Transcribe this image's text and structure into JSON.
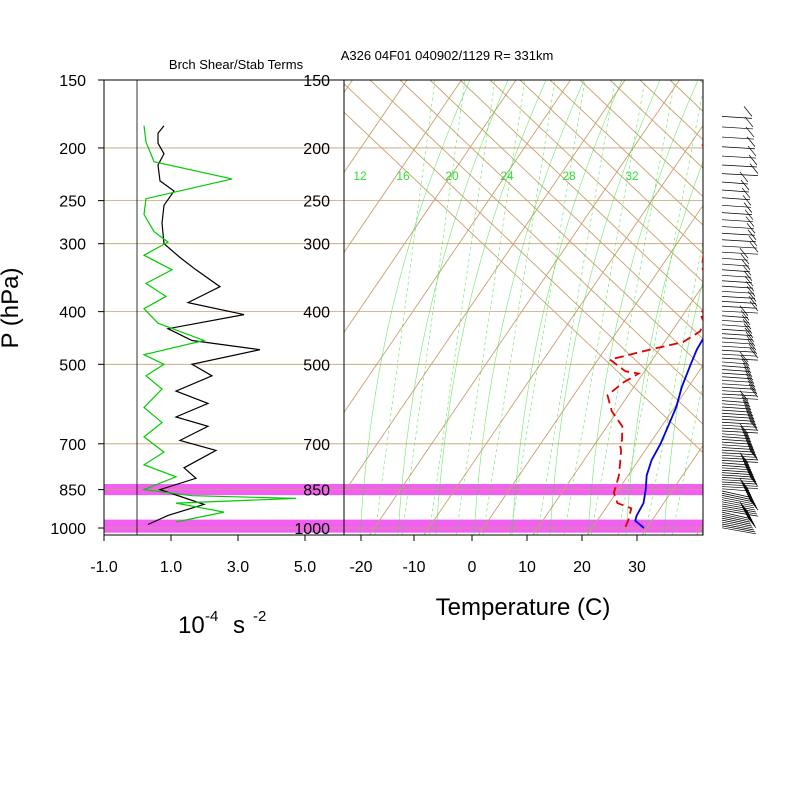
{
  "header": {
    "left_title": "Brch Shear/Stab Terms",
    "right_title": "A326 04F01 040902/1129 R= 331km"
  },
  "left_panel": {
    "ylabel": "P (hPa)",
    "xlabel_base": "10",
    "xlabel_exp": "-4",
    "xlabel_unit": "s",
    "xlabel_unit_exp": "-2"
  },
  "right_panel": {
    "xlabel": "Temperature (C)"
  },
  "colors": {
    "black_series": "#000000",
    "green_series": "#00cc00",
    "temperature": "#0000e0",
    "dewpoint": "#e00000",
    "skewt_lines": "#c8a070",
    "mixing_ratio": "#33dd33",
    "highlight": "#ee44ee"
  },
  "chart_data": [
    {
      "type": "line",
      "panel": "left",
      "title": "Brch Shear/Stab Terms",
      "ylabel": "P (hPa)",
      "xlabel": "10-4 s -2",
      "y_scale": "log",
      "ylim": [
        1030,
        150
      ],
      "xlim": [
        -1.0,
        5.0
      ],
      "x_ticks": [
        "-1.0",
        "1.0",
        "3.0",
        "5.0"
      ],
      "y_ticks": [
        "150",
        "200",
        "250",
        "300",
        "400",
        "500",
        "700",
        "850",
        "1000"
      ],
      "zero_line": 0.0,
      "highlight_bands_hpa": [
        [
          830,
          870
        ],
        [
          965,
          1020
        ]
      ],
      "series": [
        {
          "color": "black",
          "points": [
            [
              0.5,
              182
            ],
            [
              0.35,
              188
            ],
            [
              0.35,
              196
            ],
            [
              0.5,
              205
            ],
            [
              0.35,
              215
            ],
            [
              0.4,
              230
            ],
            [
              0.75,
              240
            ],
            [
              0.5,
              255
            ],
            [
              0.45,
              275
            ],
            [
              0.5,
              300
            ],
            [
              0.9,
              318
            ],
            [
              1.3,
              335
            ],
            [
              1.9,
              360
            ],
            [
              1.1,
              385
            ],
            [
              2.5,
              405
            ],
            [
              0.6,
              430
            ],
            [
              1.2,
              452
            ],
            [
              2.9,
              470
            ],
            [
              1.2,
              500
            ],
            [
              1.7,
              525
            ],
            [
              0.8,
              560
            ],
            [
              1.6,
              590
            ],
            [
              0.8,
              625
            ],
            [
              1.6,
              650
            ],
            [
              0.9,
              690
            ],
            [
              1.8,
              720
            ],
            [
              1.0,
              775
            ],
            [
              1.3,
              810
            ],
            [
              0.4,
              850
            ],
            [
              1.5,
              905
            ],
            [
              0.6,
              948
            ],
            [
              0.1,
              985
            ]
          ]
        },
        {
          "color": "green",
          "points": [
            [
              0.0,
              182
            ],
            [
              0.05,
              195
            ],
            [
              0.25,
              212
            ],
            [
              2.2,
              228
            ],
            [
              0.05,
              248
            ],
            [
              0.0,
              265
            ],
            [
              0.25,
              285
            ],
            [
              0.6,
              298
            ],
            [
              0.0,
              315
            ],
            [
              0.7,
              335
            ],
            [
              0.05,
              355
            ],
            [
              0.55,
              375
            ],
            [
              0.0,
              395
            ],
            [
              0.35,
              420
            ],
            [
              1.5,
              452
            ],
            [
              0.0,
              480
            ],
            [
              0.5,
              500
            ],
            [
              0.05,
              525
            ],
            [
              0.45,
              555
            ],
            [
              0.0,
              600
            ],
            [
              0.45,
              640
            ],
            [
              0.0,
              680
            ],
            [
              0.5,
              725
            ],
            [
              0.0,
              765
            ],
            [
              0.8,
              805
            ],
            [
              0.0,
              850
            ],
            [
              1.2,
              872
            ],
            [
              3.8,
              882
            ],
            [
              0.8,
              900
            ],
            [
              2.0,
              935
            ],
            [
              0.8,
              975
            ]
          ]
        }
      ]
    },
    {
      "type": "line",
      "panel": "right",
      "title": "A326 04F01 040902/1129 R= 331km",
      "xlabel": "Temperature (C)",
      "y_scale": "log",
      "ylim": [
        1030,
        150
      ],
      "x_ticks": [
        "-20",
        "-10",
        "0",
        "10",
        "20",
        "30"
      ],
      "y_ticks": [
        "150",
        "200",
        "250",
        "300",
        "400",
        "500",
        "700",
        "850",
        "1000"
      ],
      "mixing_ratio_labels": [
        "12",
        "16",
        "20",
        "24",
        "28",
        "32"
      ],
      "series": [
        {
          "color": "blue",
          "name": "temperature",
          "points": [
            [
              -2.6,
              172
            ],
            [
              -0.3,
              190
            ],
            [
              2.4,
              212
            ],
            [
              4.8,
              235
            ],
            [
              7.7,
              265
            ],
            [
              10.4,
              295
            ],
            [
              12.6,
              325
            ],
            [
              14.0,
              360
            ],
            [
              15.0,
              395
            ],
            [
              15.5,
              420
            ],
            [
              16.6,
              440
            ],
            [
              16.9,
              470
            ],
            [
              17.6,
              500
            ],
            [
              18.8,
              550
            ],
            [
              20.3,
              600
            ],
            [
              21.2,
              650
            ],
            [
              22.0,
              700
            ],
            [
              22.4,
              750
            ],
            [
              23.4,
              800
            ],
            [
              25.0,
              850
            ],
            [
              26.3,
              900
            ],
            [
              26.6,
              950
            ],
            [
              27.0,
              970
            ],
            [
              29.5,
              1000
            ]
          ]
        },
        {
          "color": "red",
          "name": "dewpoint",
          "dashed": true,
          "points": [
            [
              -7.8,
              197
            ],
            [
              -4.8,
              208
            ],
            [
              -2.3,
              225
            ],
            [
              0.2,
              250
            ],
            [
              2.7,
              275
            ],
            [
              5.1,
              300
            ],
            [
              7.4,
              330
            ],
            [
              10.4,
              355
            ],
            [
              13.4,
              378
            ],
            [
              13.9,
              390
            ],
            [
              12.9,
              402
            ],
            [
              14.9,
              420
            ],
            [
              15.2,
              435
            ],
            [
              13.4,
              455
            ],
            [
              8.2,
              470
            ],
            [
              2.2,
              490
            ],
            [
              6.5,
              515
            ],
            [
              9.2,
              520
            ],
            [
              7.5,
              540
            ],
            [
              6.2,
              570
            ],
            [
              9.0,
              610
            ],
            [
              12.8,
              650
            ],
            [
              14.5,
              690
            ],
            [
              14.5,
              700
            ],
            [
              15.6,
              720
            ],
            [
              17.0,
              760
            ],
            [
              18.3,
              800
            ],
            [
              19.2,
              840
            ],
            [
              19.5,
              860
            ],
            [
              21.5,
              900
            ],
            [
              24.7,
              920
            ],
            [
              25.6,
              965
            ],
            [
              26.0,
              1000
            ]
          ]
        }
      ]
    }
  ]
}
